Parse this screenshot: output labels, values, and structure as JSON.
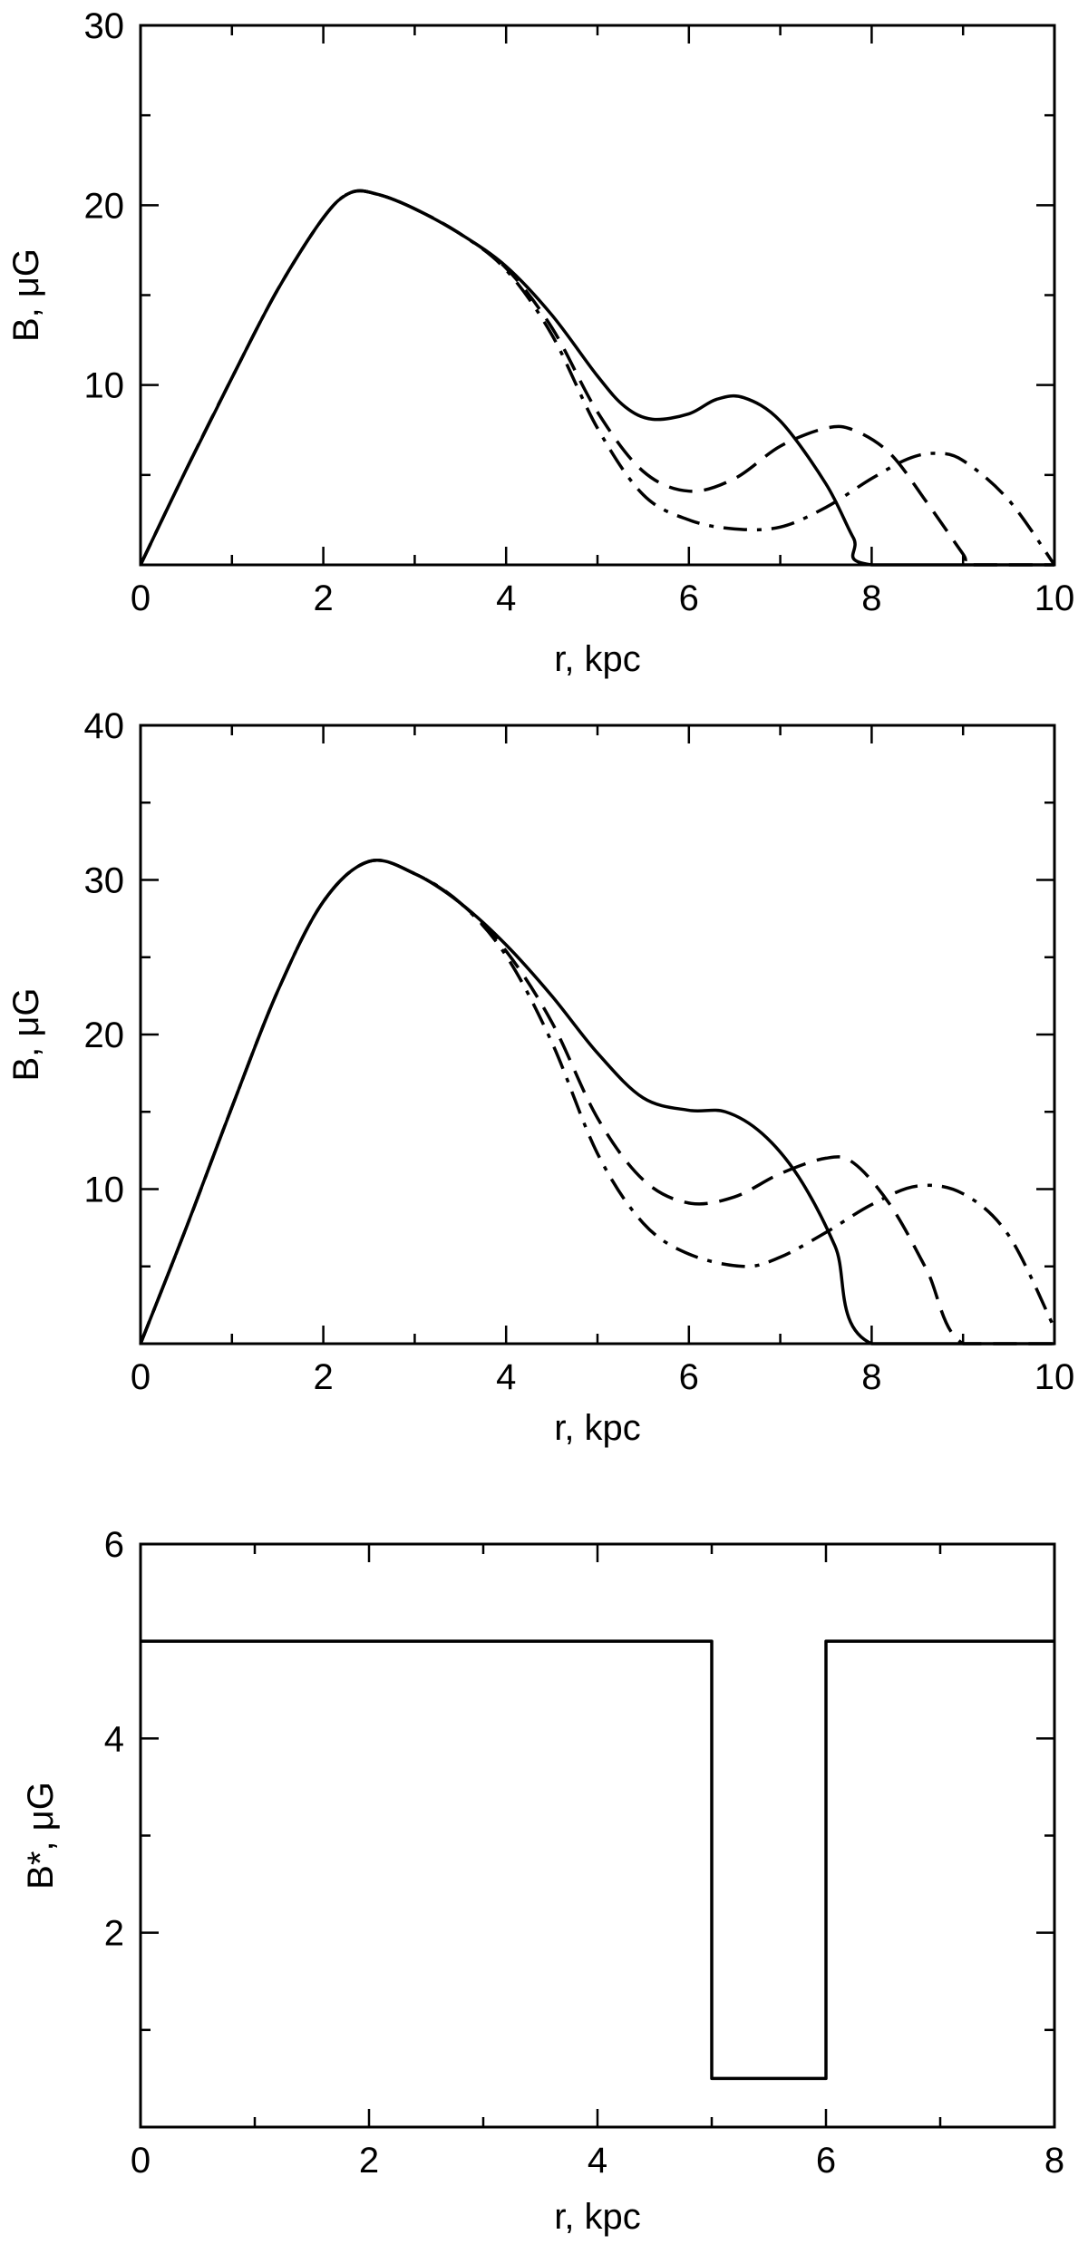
{
  "chart_data": [
    {
      "type": "line",
      "xlabel": "r, kpc",
      "ylabel": "B, μG",
      "xlim": [
        0,
        10
      ],
      "ylim": [
        0,
        30
      ],
      "xticks": [
        "0",
        "2",
        "4",
        "6",
        "8",
        "10"
      ],
      "yticks": [
        "10",
        "20",
        "30"
      ],
      "xtick_values": [
        0,
        2,
        4,
        6,
        8,
        10
      ],
      "ytick_values": [
        10,
        20,
        30
      ],
      "grid": false,
      "series": [
        {
          "style": "solid",
          "points": [
            [
              0,
              0
            ],
            [
              0.5,
              5.3
            ],
            [
              1,
              10.4
            ],
            [
              1.5,
              15.3
            ],
            [
              2,
              19.3
            ],
            [
              2.3,
              20.7
            ],
            [
              2.6,
              20.6
            ],
            [
              3,
              19.8
            ],
            [
              3.5,
              18.4
            ],
            [
              4,
              16.6
            ],
            [
              4.5,
              13.9
            ],
            [
              5,
              10.5
            ],
            [
              5.3,
              8.8
            ],
            [
              5.6,
              8.1
            ],
            [
              6,
              8.4
            ],
            [
              6.3,
              9.2
            ],
            [
              6.6,
              9.3
            ],
            [
              7,
              8.0
            ],
            [
              7.5,
              4.5
            ],
            [
              7.8,
              1.5
            ],
            [
              8,
              0
            ],
            [
              10,
              0
            ]
          ]
        },
        {
          "style": "dashed",
          "points": [
            [
              0,
              0
            ],
            [
              0.5,
              5.3
            ],
            [
              1,
              10.4
            ],
            [
              1.5,
              15.3
            ],
            [
              2,
              19.3
            ],
            [
              2.3,
              20.7
            ],
            [
              2.6,
              20.6
            ],
            [
              3,
              19.8
            ],
            [
              3.5,
              18.4
            ],
            [
              4,
              16.5
            ],
            [
              4.5,
              13.2
            ],
            [
              5,
              8.5
            ],
            [
              5.5,
              5.2
            ],
            [
              6,
              4.1
            ],
            [
              6.5,
              4.8
            ],
            [
              7,
              6.6
            ],
            [
              7.5,
              7.6
            ],
            [
              7.8,
              7.5
            ],
            [
              8.2,
              6.2
            ],
            [
              8.6,
              3.5
            ],
            [
              9,
              0.6
            ],
            [
              9.1,
              0
            ],
            [
              10,
              0
            ]
          ]
        },
        {
          "style": "dash-dot",
          "points": [
            [
              0,
              0
            ],
            [
              0.5,
              5.3
            ],
            [
              1,
              10.4
            ],
            [
              1.5,
              15.3
            ],
            [
              2,
              19.3
            ],
            [
              2.3,
              20.7
            ],
            [
              2.6,
              20.6
            ],
            [
              3,
              19.8
            ],
            [
              3.5,
              18.4
            ],
            [
              4,
              16.4
            ],
            [
              4.5,
              12.8
            ],
            [
              5,
              7.6
            ],
            [
              5.5,
              3.9
            ],
            [
              6,
              2.5
            ],
            [
              6.5,
              2.0
            ],
            [
              7,
              2.1
            ],
            [
              7.5,
              3.2
            ],
            [
              8,
              4.8
            ],
            [
              8.4,
              5.9
            ],
            [
              8.7,
              6.2
            ],
            [
              9,
              5.8
            ],
            [
              9.5,
              3.6
            ],
            [
              10,
              0
            ]
          ]
        }
      ]
    },
    {
      "type": "line",
      "xlabel": "r, kpc",
      "ylabel": "B, μG",
      "xlim": [
        0,
        10
      ],
      "ylim": [
        0,
        40
      ],
      "xticks": [
        "0",
        "2",
        "4",
        "6",
        "8",
        "10"
      ],
      "yticks": [
        "10",
        "20",
        "30",
        "40"
      ],
      "xtick_values": [
        0,
        2,
        4,
        6,
        8,
        10
      ],
      "ytick_values": [
        10,
        20,
        30,
        40
      ],
      "grid": false,
      "series": [
        {
          "style": "solid",
          "points": [
            [
              0,
              0
            ],
            [
              0.5,
              7.5
            ],
            [
              1,
              15.3
            ],
            [
              1.5,
              22.8
            ],
            [
              2,
              28.6
            ],
            [
              2.5,
              31.2
            ],
            [
              3,
              30.4
            ],
            [
              3.5,
              28.5
            ],
            [
              4,
              25.8
            ],
            [
              4.5,
              22.5
            ],
            [
              5,
              18.8
            ],
            [
              5.5,
              15.9
            ],
            [
              6,
              15.1
            ],
            [
              6.4,
              15.0
            ],
            [
              6.8,
              13.6
            ],
            [
              7.2,
              10.8
            ],
            [
              7.6,
              6.3
            ],
            [
              8,
              0
            ],
            [
              10,
              0
            ]
          ]
        },
        {
          "style": "dashed",
          "points": [
            [
              0,
              0
            ],
            [
              0.5,
              7.5
            ],
            [
              1,
              15.3
            ],
            [
              1.5,
              22.8
            ],
            [
              2,
              28.6
            ],
            [
              2.5,
              31.2
            ],
            [
              3,
              30.4
            ],
            [
              3.5,
              28.5
            ],
            [
              4,
              25.4
            ],
            [
              4.5,
              20.8
            ],
            [
              5,
              14.6
            ],
            [
              5.5,
              10.6
            ],
            [
              6,
              9.1
            ],
            [
              6.5,
              9.5
            ],
            [
              7,
              11.0
            ],
            [
              7.5,
              12.0
            ],
            [
              7.8,
              11.7
            ],
            [
              8.2,
              9.0
            ],
            [
              8.6,
              4.8
            ],
            [
              9,
              0
            ],
            [
              10,
              0
            ]
          ]
        },
        {
          "style": "dash-dot",
          "points": [
            [
              0,
              0
            ],
            [
              0.5,
              7.5
            ],
            [
              1,
              15.3
            ],
            [
              1.5,
              22.8
            ],
            [
              2,
              28.6
            ],
            [
              2.5,
              31.2
            ],
            [
              3,
              30.4
            ],
            [
              3.5,
              28.5
            ],
            [
              4,
              25.1
            ],
            [
              4.5,
              19.5
            ],
            [
              5,
              12.3
            ],
            [
              5.5,
              7.8
            ],
            [
              6,
              5.8
            ],
            [
              6.6,
              5.0
            ],
            [
              7,
              5.6
            ],
            [
              7.5,
              7.2
            ],
            [
              8,
              9.0
            ],
            [
              8.5,
              10.2
            ],
            [
              9,
              9.7
            ],
            [
              9.5,
              7.0
            ],
            [
              10,
              1.0
            ]
          ]
        }
      ]
    },
    {
      "type": "line",
      "xlabel": "r, kpc",
      "ylabel": "B*, μG",
      "xlim": [
        0,
        8
      ],
      "ylim": [
        0,
        6
      ],
      "xticks": [
        "0",
        "2",
        "4",
        "6",
        "8"
      ],
      "yticks": [
        "2",
        "4",
        "6"
      ],
      "xtick_values": [
        0,
        2,
        4,
        6,
        8
      ],
      "ytick_values": [
        2,
        4,
        6
      ],
      "grid": false,
      "series": [
        {
          "style": "solid",
          "points": [
            [
              0,
              5
            ],
            [
              5,
              5
            ],
            [
              5,
              0.5
            ],
            [
              6,
              0.5
            ],
            [
              6,
              5
            ],
            [
              8,
              5
            ]
          ]
        }
      ]
    }
  ]
}
